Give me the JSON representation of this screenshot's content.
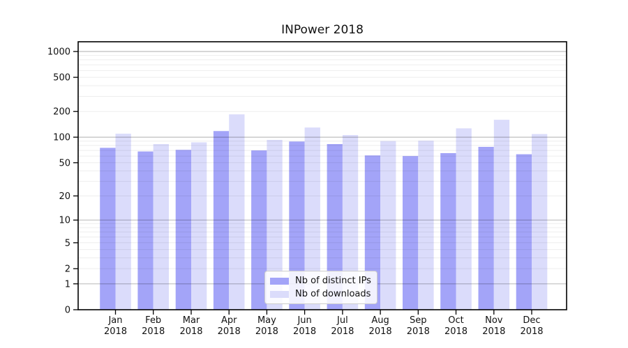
{
  "chart_data": {
    "type": "bar",
    "title": "INPower 2018",
    "categories": [
      "Jan",
      "Feb",
      "Mar",
      "Apr",
      "May",
      "Jun",
      "Jul",
      "Aug",
      "Sep",
      "Oct",
      "Nov",
      "Dec"
    ],
    "x_tick_year": "2018",
    "series": [
      {
        "name": "Nb of distinct IPs",
        "color": "#a3a4f8",
        "values": [
          75,
          68,
          71,
          118,
          70,
          89,
          83,
          61,
          60,
          65,
          77,
          63
        ]
      },
      {
        "name": "Nb of downloads",
        "color": "#dbdcfb",
        "values": [
          110,
          83,
          87,
          185,
          93,
          130,
          106,
          90,
          91,
          127,
          160,
          109
        ]
      }
    ],
    "y_axis": {
      "scale": "symlog-ln(1+v)",
      "ticks": [
        0,
        1,
        2,
        5,
        10,
        20,
        50,
        100,
        200,
        500,
        1000
      ],
      "major_gridlines": [
        1,
        10,
        100,
        1000
      ],
      "minor_gridline_decades": [
        1,
        10,
        100
      ],
      "range_max": 1297
    },
    "grid": true,
    "legend_position": "bottom-center-inside"
  }
}
